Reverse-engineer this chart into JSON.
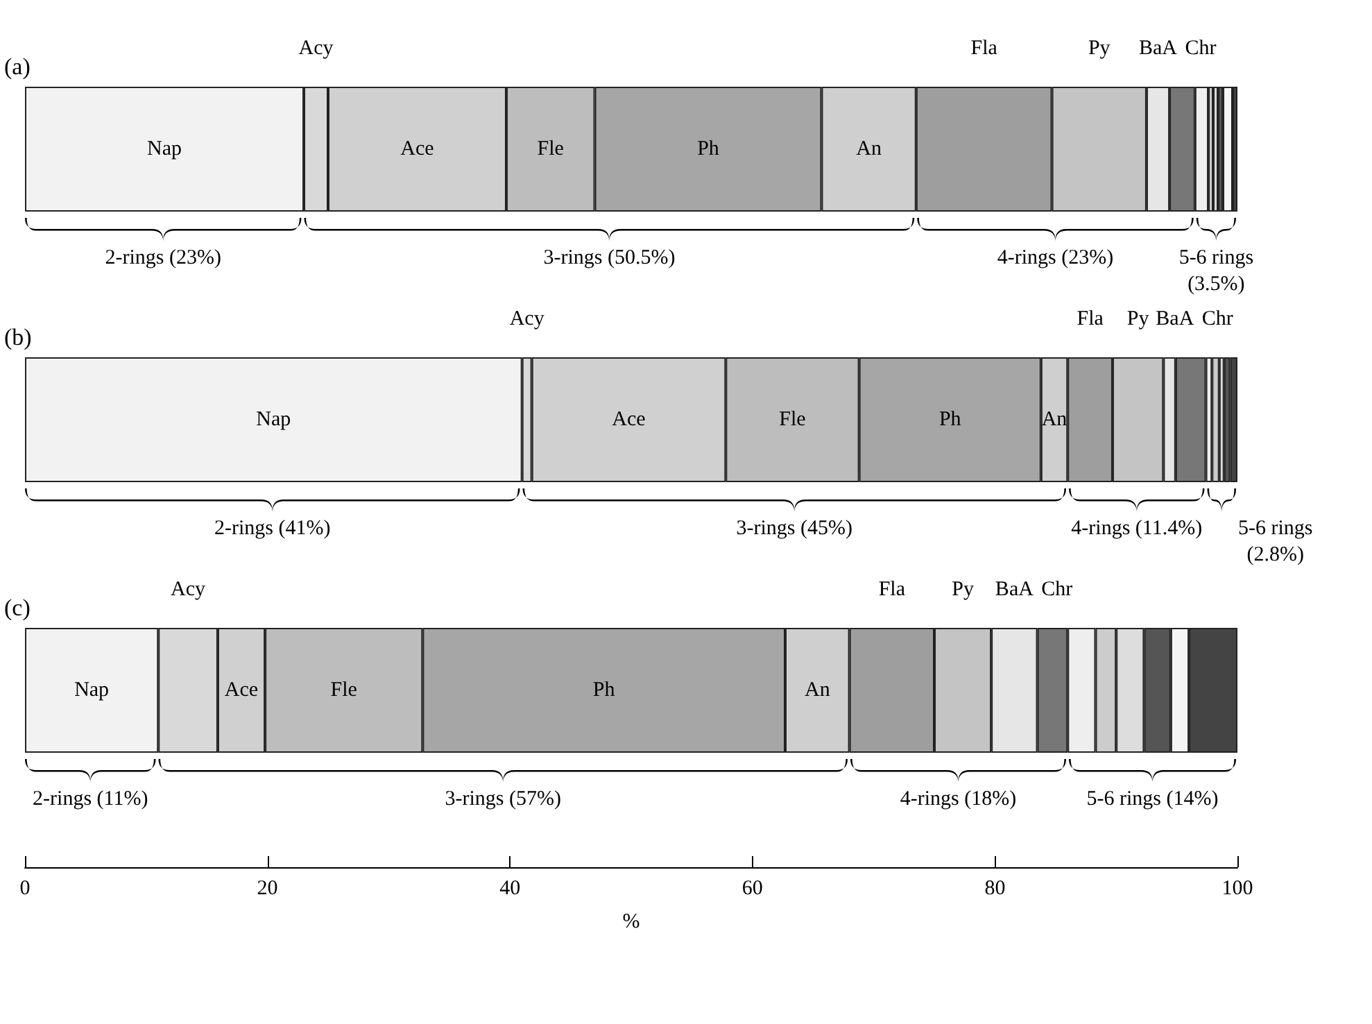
{
  "chart_data": {
    "type": "bar",
    "orientation": "horizontal",
    "stacked": true,
    "categories": [
      "(a)",
      "(b)",
      "(c)"
    ],
    "xlim": [
      0,
      100
    ],
    "xticks": [
      0,
      20,
      40,
      60,
      80,
      100
    ],
    "xlabel": "%",
    "series": [
      {
        "name": "Nap",
        "color": "#f2f2f2",
        "values": [
          23,
          41,
          11
        ]
      },
      {
        "name": "Acy",
        "color": "#d9d9d9",
        "values": [
          2.0,
          0.8,
          4.9
        ]
      },
      {
        "name": "Ace",
        "color": "#d0d0d0",
        "values": [
          14.7,
          16,
          3.9
        ]
      },
      {
        "name": "Fle",
        "color": "#bdbdbd",
        "values": [
          7.3,
          11,
          13.0
        ]
      },
      {
        "name": "Ph",
        "color": "#a6a6a6",
        "values": [
          18.7,
          15,
          29.9
        ]
      },
      {
        "name": "An",
        "color": "#cfcfcf",
        "values": [
          7.8,
          2.2,
          5.3
        ]
      },
      {
        "name": "Fla",
        "color": "#9e9e9e",
        "values": [
          11.2,
          3.7,
          7.0
        ]
      },
      {
        "name": "Py",
        "color": "#c4c4c4",
        "values": [
          7.8,
          4.2,
          4.7
        ]
      },
      {
        "name": "BaA",
        "color": "#e6e6e6",
        "values": [
          1.9,
          1.0,
          3.8
        ]
      },
      {
        "name": "Chr",
        "color": "#777777",
        "values": [
          2.1,
          2.5,
          2.5
        ]
      },
      {
        "color": "#eeeeee",
        "values": [
          1.1,
          0.5,
          2.3
        ]
      },
      {
        "color": "#cccccc",
        "values": [
          0.4,
          0.6,
          1.7
        ]
      },
      {
        "color": "#dddddd",
        "values": [
          0.4,
          0.4,
          2.3
        ]
      },
      {
        "color": "#555555",
        "values": [
          0.4,
          0.5,
          2.2
        ]
      },
      {
        "color": "#f5f5f5",
        "values": [
          0.8,
          null,
          1.5
        ]
      },
      {
        "color": "#444444",
        "values": [
          0.4,
          0.6,
          4.0
        ]
      }
    ],
    "annotations": [
      "2-rings (23%)",
      "3-rings (50.5%)",
      "4-rings (23%)",
      "5-6 rings (3.5%)",
      "2-rings (41%)",
      "3-rings (45%)",
      "4-rings (11.4%)",
      "5-6 rings (2.8%)",
      "2-rings (11%)",
      "3-rings (57%)",
      "4-rings (18%)",
      "5-6 rings (14%)"
    ]
  }
}
